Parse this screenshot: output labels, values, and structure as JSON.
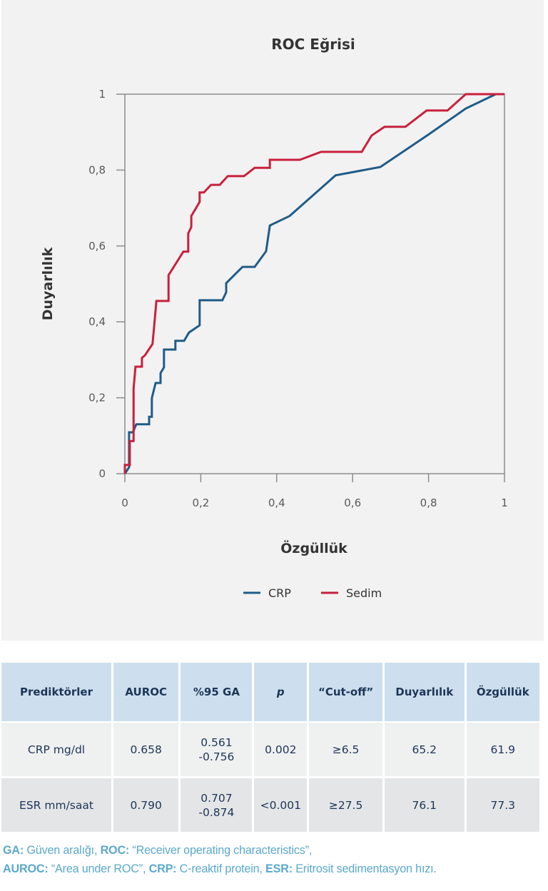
{
  "chart_data": {
    "type": "line",
    "title": "ROC Eğrisi",
    "xlabel": "Özgüllük",
    "ylabel": "Duyarlılık",
    "xlim": [
      0,
      1
    ],
    "ylim": [
      0,
      1
    ],
    "x_ticks": [
      "0",
      "0,2",
      "0,4",
      "0,6",
      "0,8",
      "1"
    ],
    "y_ticks": [
      "0",
      "0,2",
      "0,4",
      "0,6",
      "0,8",
      "1"
    ],
    "grid": false,
    "legend_position": "bottom",
    "series": [
      {
        "name": "CRP",
        "color": "#1f5c87",
        "points": [
          [
            0,
            0
          ],
          [
            0.011,
            0.017
          ],
          [
            0.011,
            0.109
          ],
          [
            0.021,
            0.109
          ],
          [
            0.03,
            0.13
          ],
          [
            0.064,
            0.13
          ],
          [
            0.064,
            0.15
          ],
          [
            0.071,
            0.15
          ],
          [
            0.071,
            0.199
          ],
          [
            0.081,
            0.239
          ],
          [
            0.094,
            0.239
          ],
          [
            0.094,
            0.265
          ],
          [
            0.103,
            0.28
          ],
          [
            0.103,
            0.327
          ],
          [
            0.133,
            0.327
          ],
          [
            0.133,
            0.35
          ],
          [
            0.156,
            0.35
          ],
          [
            0.169,
            0.372
          ],
          [
            0.197,
            0.391
          ],
          [
            0.197,
            0.457
          ],
          [
            0.257,
            0.457
          ],
          [
            0.267,
            0.478
          ],
          [
            0.267,
            0.502
          ],
          [
            0.31,
            0.545
          ],
          [
            0.342,
            0.545
          ],
          [
            0.372,
            0.586
          ],
          [
            0.382,
            0.654
          ],
          [
            0.434,
            0.679
          ],
          [
            0.555,
            0.786
          ],
          [
            0.673,
            0.808
          ],
          [
            0.799,
            0.893
          ],
          [
            0.898,
            0.962
          ],
          [
            0.977,
            1.0
          ],
          [
            1.0,
            1.0
          ]
        ]
      },
      {
        "name": "Sedim",
        "color": "#c8203c",
        "points": [
          [
            0,
            0
          ],
          [
            0,
            0.023
          ],
          [
            0.013,
            0.023
          ],
          [
            0.013,
            0.086
          ],
          [
            0.023,
            0.086
          ],
          [
            0.023,
            0.224
          ],
          [
            0.028,
            0.282
          ],
          [
            0.045,
            0.282
          ],
          [
            0.045,
            0.305
          ],
          [
            0.053,
            0.312
          ],
          [
            0.073,
            0.342
          ],
          [
            0.083,
            0.455
          ],
          [
            0.115,
            0.455
          ],
          [
            0.115,
            0.523
          ],
          [
            0.154,
            0.585
          ],
          [
            0.167,
            0.585
          ],
          [
            0.167,
            0.633
          ],
          [
            0.175,
            0.65
          ],
          [
            0.175,
            0.679
          ],
          [
            0.197,
            0.716
          ],
          [
            0.197,
            0.741
          ],
          [
            0.208,
            0.741
          ],
          [
            0.227,
            0.761
          ],
          [
            0.25,
            0.761
          ],
          [
            0.271,
            0.784
          ],
          [
            0.314,
            0.784
          ],
          [
            0.342,
            0.806
          ],
          [
            0.382,
            0.806
          ],
          [
            0.382,
            0.827
          ],
          [
            0.461,
            0.827
          ],
          [
            0.517,
            0.848
          ],
          [
            0.624,
            0.848
          ],
          [
            0.65,
            0.891
          ],
          [
            0.684,
            0.914
          ],
          [
            0.739,
            0.914
          ],
          [
            0.795,
            0.957
          ],
          [
            0.85,
            0.957
          ],
          [
            0.898,
            1.0
          ],
          [
            1.0,
            1.0
          ]
        ]
      }
    ]
  },
  "table": {
    "headers": [
      "Prediktörler",
      "AUROC",
      "%95 GA",
      "p",
      "“Cut-off”",
      "Duyarlılık",
      "Özgüllük"
    ],
    "rows": [
      {
        "predictor": "CRP mg/dl",
        "auroc": "0.658",
        "ci_low": "0.561",
        "ci_high": "-0.756",
        "p": "0.002",
        "cutoff": "≥6.5",
        "sensitivity": "65.2",
        "specificity": "61.9"
      },
      {
        "predictor": "ESR mm/saat",
        "auroc": "0.790",
        "ci_low": "0.707",
        "ci_high": "-0.874",
        "p": "<0.001",
        "cutoff": "≥27.5",
        "sensitivity": "76.1",
        "specificity": "77.3"
      }
    ]
  },
  "footnote": {
    "line1": [
      {
        "abbr": "GA:",
        "text": " Güven aralığı, "
      },
      {
        "abbr": "ROC:",
        "text": " “Receiver operating characteristics”,"
      }
    ],
    "line2": [
      {
        "abbr": "AUROC:",
        "text": " “Area under ROC”, "
      },
      {
        "abbr": "CRP:",
        "text": " C-reaktif protein, "
      },
      {
        "abbr": "ESR:",
        "text": " Eritrosit sedimentasyon hızı."
      }
    ]
  },
  "colors": {
    "crp": "#1f5c87",
    "sedim": "#c8203c",
    "table_header_bg": "#cddfee",
    "footnote": "#5ba9cc"
  }
}
